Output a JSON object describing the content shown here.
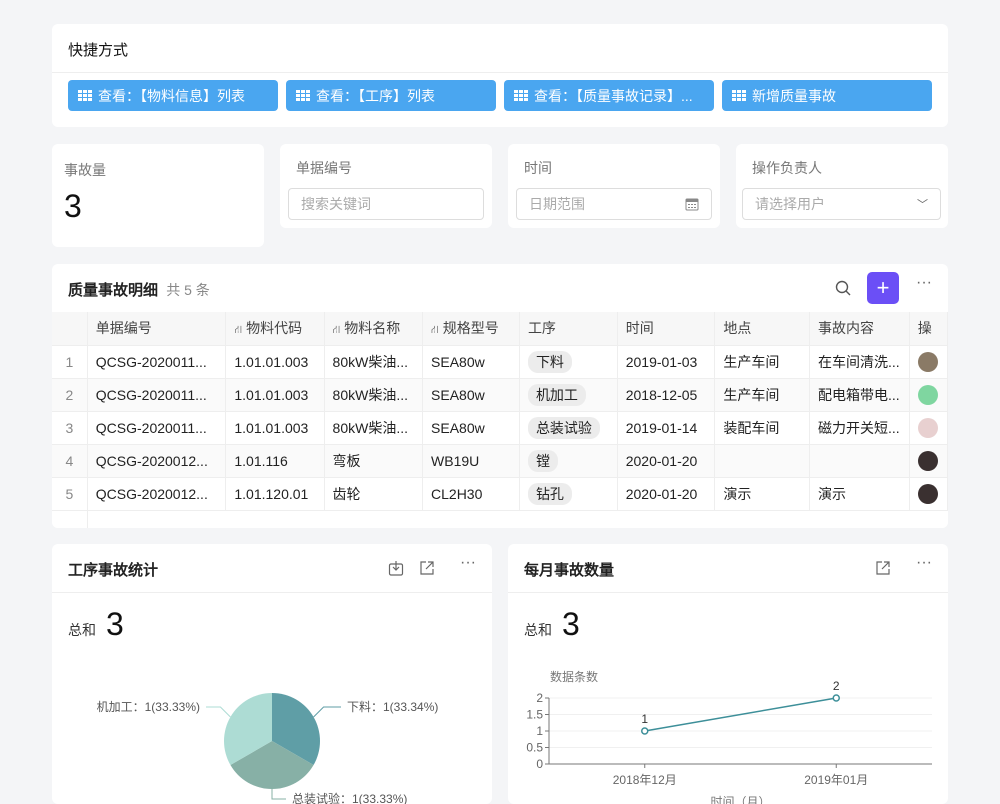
{
  "shortcuts": {
    "title": "快捷方式",
    "buttons": [
      {
        "label": "查看：【物料信息】列表",
        "icon": "grid-icon"
      },
      {
        "label": "查看：【工序】列表",
        "icon": "grid-icon"
      },
      {
        "label": "查看：【质量事故记录】...",
        "icon": "grid-icon"
      },
      {
        "label": "新增质量事故",
        "icon": "grid-icon"
      }
    ]
  },
  "stat": {
    "label": "事故量",
    "value": "3"
  },
  "filters": [
    {
      "label": "单据编号",
      "placeholder": "搜索关键词"
    },
    {
      "label": "时间",
      "placeholder": "日期范围",
      "icon": "calendar-icon"
    },
    {
      "label": "操作负责人",
      "placeholder": "请选择用户",
      "icon": "chevron-down-icon"
    }
  ],
  "table": {
    "title": "质量事故明细",
    "count": "共 5 条",
    "accent": "#6b4ff6",
    "columns": [
      "单据编号",
      "物料代码",
      "物料名称",
      "规格型号",
      "工序",
      "时间",
      "地点",
      "事故内容",
      "操"
    ],
    "rows": [
      {
        "idx": "1",
        "code": "QCSG-2020011...",
        "mcode": "1.01.01.003",
        "mname": "80kW柴油...",
        "spec": "SEA80w",
        "proc": "下料",
        "time": "2019-01-03",
        "place": "生产车间",
        "content": "在车间清洗..."
      },
      {
        "idx": "2",
        "code": "QCSG-2020011...",
        "mcode": "1.01.01.003",
        "mname": "80kW柴油...",
        "spec": "SEA80w",
        "proc": "机加工",
        "time": "2018-12-05",
        "place": "生产车间",
        "content": "配电箱带电..."
      },
      {
        "idx": "3",
        "code": "QCSG-2020011...",
        "mcode": "1.01.01.003",
        "mname": "80kW柴油...",
        "spec": "SEA80w",
        "proc": "总装试验",
        "time": "2019-01-14",
        "place": "装配车间",
        "content": "磁力开关短..."
      },
      {
        "idx": "4",
        "code": "QCSG-2020012...",
        "mcode": "1.01.116",
        "mname": "弯板",
        "spec": "WB19U",
        "proc": "镗",
        "time": "2020-01-20",
        "place": "",
        "content": ""
      },
      {
        "idx": "5",
        "code": "QCSG-2020012...",
        "mcode": "1.01.120.01",
        "mname": "齿轮",
        "spec": "CL2H30",
        "proc": "钻孔",
        "time": "2020-01-20",
        "place": "演示",
        "content": "演示"
      }
    ]
  },
  "pie_card": {
    "title": "工序事故统计",
    "sum_label": "总和",
    "sum_value": "3"
  },
  "line_card": {
    "title": "每月事故数量",
    "sum_label": "总和",
    "sum_value": "3"
  },
  "chart_data": [
    {
      "type": "pie",
      "labels": [
        "下料",
        "总装试验",
        "机加工"
      ],
      "values": [
        1,
        1,
        1
      ],
      "data_labels": [
        "下料：1(33.34%)",
        "总装试验：1(33.33%)",
        "机加工：1(33.33%)"
      ],
      "colors": [
        "#5f9ea6",
        "#87b0a6",
        "#addcd4"
      ]
    },
    {
      "type": "line",
      "categories": [
        "2018年12月",
        "2019年01月"
      ],
      "values": [
        1,
        2
      ],
      "ylabel": "数据条数",
      "xlabel": "时间（月）",
      "ylim": [
        0,
        2
      ],
      "yticks": [
        "0",
        "0.5",
        "1",
        "1.5",
        "2"
      ],
      "color": "#3d8f99"
    }
  ]
}
